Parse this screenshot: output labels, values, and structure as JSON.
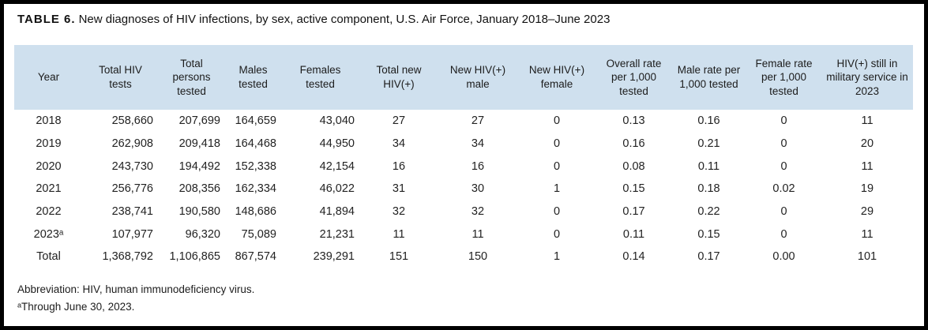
{
  "page": {
    "title_label": "TABLE 6.",
    "title_text": "New diagnoses of HIV infections, by sex, active component, U.S. Air Force, January 2018–June 2023"
  },
  "table": {
    "header_bg": "#cfe0ee",
    "columns": [
      "Year",
      "Total HIV tests",
      "Total persons tested",
      "Males tested",
      "Females tested",
      "Total new HIV(+)",
      "New HIV(+) male",
      "New HIV(+) female",
      "Overall rate per 1,000 tested",
      "Male rate per 1,000 tested",
      "Female rate per 1,000 tested",
      "HIV(+) still in military service in 2023"
    ],
    "rows": [
      [
        "2018",
        "258,660",
        "207,699",
        "164,659",
        "43,040",
        "27",
        "27",
        "0",
        "0.13",
        "0.16",
        "0",
        "11"
      ],
      [
        "2019",
        "262,908",
        "209,418",
        "164,468",
        "44,950",
        "34",
        "34",
        "0",
        "0.16",
        "0.21",
        "0",
        "20"
      ],
      [
        "2020",
        "243,730",
        "194,492",
        "152,338",
        "42,154",
        "16",
        "16",
        "0",
        "0.08",
        "0.11",
        "0",
        "11"
      ],
      [
        "2021",
        "256,776",
        "208,356",
        "162,334",
        "46,022",
        "31",
        "30",
        "1",
        "0.15",
        "0.18",
        "0.02",
        "19"
      ],
      [
        "2022",
        "238,741",
        "190,580",
        "148,686",
        "41,894",
        "32",
        "32",
        "0",
        "0.17",
        "0.22",
        "0",
        "29"
      ],
      [
        "2023ᵃ",
        "107,977",
        "96,320",
        "75,089",
        "21,231",
        "11",
        "11",
        "0",
        "0.11",
        "0.15",
        "0",
        "11"
      ],
      [
        "Total",
        "1,368,792",
        "1,106,865",
        "867,574",
        "239,291",
        "151",
        "150",
        "1",
        "0.14",
        "0.17",
        "0.00",
        "101"
      ]
    ]
  },
  "footnotes": {
    "abbreviation": "Abbreviation: HIV, human immunodeficiency virus.",
    "footnote_a": "ᵃThrough June 30, 2023."
  }
}
